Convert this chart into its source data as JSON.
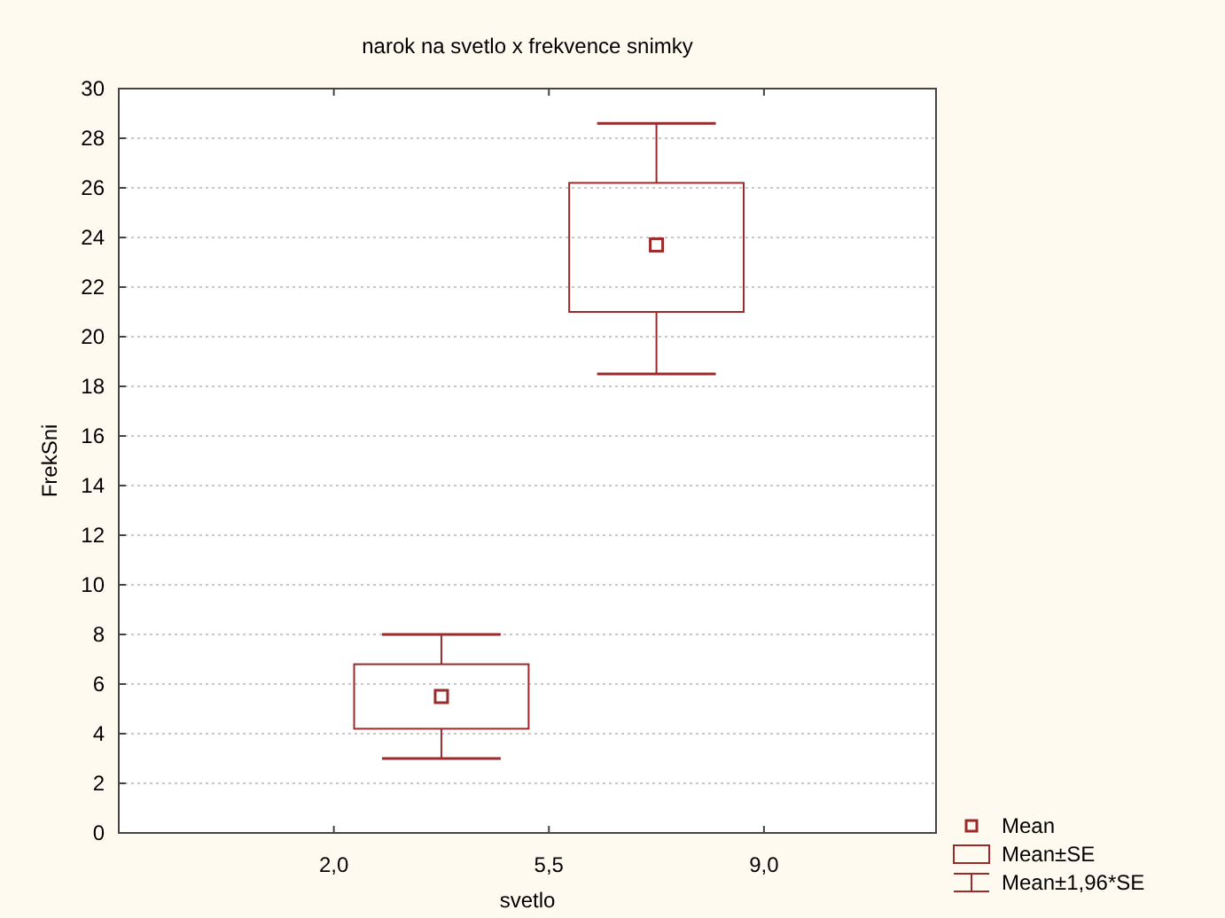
{
  "chart_data": {
    "type": "box",
    "title": "narok na svetlo x frekvence snimky",
    "xlabel": "svetlo",
    "ylabel": "FrekSni",
    "x": [
      3.75,
      7.25
    ],
    "xlim": [
      -1.5,
      11.8
    ],
    "xticks": [
      {
        "value": 2,
        "label": "2,0"
      },
      {
        "value": 5.5,
        "label": "5,5"
      },
      {
        "value": 9,
        "label": "9,0"
      }
    ],
    "ylim": [
      0,
      30
    ],
    "yticks": [
      0,
      2,
      4,
      6,
      8,
      10,
      12,
      14,
      16,
      18,
      20,
      22,
      24,
      26,
      28,
      30
    ],
    "grid": "y",
    "marker": "square",
    "color": "#9b2a2a",
    "boxes": [
      {
        "low": 3.0,
        "q1": 4.2,
        "mean": 5.5,
        "q3": 6.8,
        "high": 8.0
      },
      {
        "low": 18.5,
        "q1": 21.0,
        "mean": 23.7,
        "q3": 26.2,
        "high": 28.6
      }
    ],
    "annotations": [
      "Mean",
      "Mean±SE",
      "Mean±1,96*SE"
    ]
  }
}
